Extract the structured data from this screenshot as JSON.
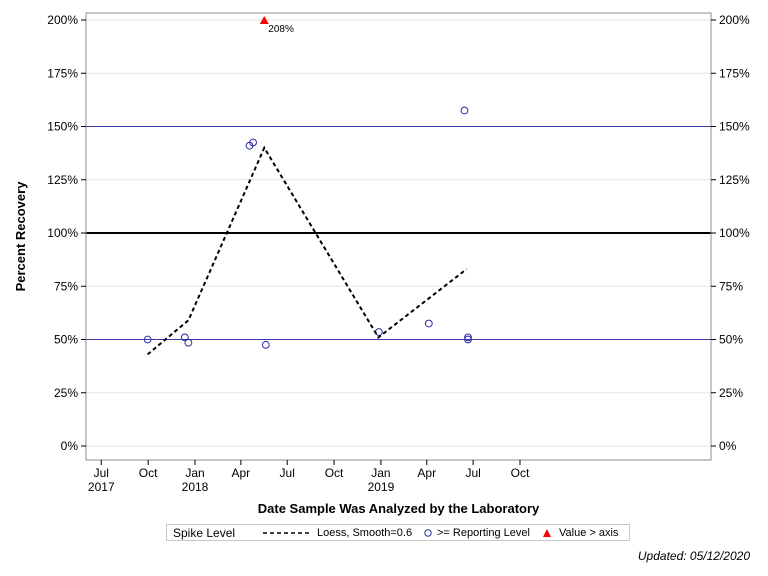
{
  "chart_data": {
    "type": "scatter",
    "xlabel": "Date Sample Was Analyzed by the Laboratory",
    "ylabel": "Percent Recovery",
    "xlim": [
      "2017-06-01",
      "2020-10-10"
    ],
    "ylim": [
      0,
      200
    ],
    "x_ticks": [
      {
        "date": "2017-07-01",
        "label": "Jul",
        "year": "2017"
      },
      {
        "date": "2017-10-01",
        "label": "Oct",
        "year": ""
      },
      {
        "date": "2018-01-01",
        "label": "Jan",
        "year": "2018"
      },
      {
        "date": "2018-04-01",
        "label": "Apr",
        "year": ""
      },
      {
        "date": "2018-07-01",
        "label": "Jul",
        "year": ""
      },
      {
        "date": "2018-10-01",
        "label": "Oct",
        "year": ""
      },
      {
        "date": "2019-01-01",
        "label": "Jan",
        "year": "2019"
      },
      {
        "date": "2019-04-01",
        "label": "Apr",
        "year": ""
      },
      {
        "date": "2019-07-01",
        "label": "Jul",
        "year": ""
      },
      {
        "date": "2019-10-01",
        "label": "Oct",
        "year": ""
      }
    ],
    "y_ticks": [
      {
        "value": 0,
        "label": "0%"
      },
      {
        "value": 25,
        "label": "25%"
      },
      {
        "value": 50,
        "label": "50%"
      },
      {
        "value": 75,
        "label": "75%"
      },
      {
        "value": 100,
        "label": "100%"
      },
      {
        "value": 125,
        "label": "125%"
      },
      {
        "value": 150,
        "label": "150%"
      },
      {
        "value": 175,
        "label": "175%"
      },
      {
        "value": 200,
        "label": "200%"
      }
    ],
    "reference_lines": [
      {
        "value": 50,
        "color": "#3a3ab0",
        "width": 1
      },
      {
        "value": 100,
        "color": "#000000",
        "width": 2
      },
      {
        "value": 150,
        "color": "#3a3ab0",
        "width": 1
      }
    ],
    "series": [
      {
        "name": ">= Reporting Level",
        "kind": "points",
        "color": "#2b2ba6",
        "points": [
          {
            "x": "2017-09-30",
            "y": 50
          },
          {
            "x": "2017-12-12",
            "y": 51
          },
          {
            "x": "2017-12-19",
            "y": 48.5
          },
          {
            "x": "2018-04-18",
            "y": 141
          },
          {
            "x": "2018-04-25",
            "y": 142.5
          },
          {
            "x": "2018-05-20",
            "y": 47.5
          },
          {
            "x": "2018-12-28",
            "y": 53.5
          },
          {
            "x": "2019-04-05",
            "y": 57.5
          },
          {
            "x": "2019-06-14",
            "y": 157.5
          },
          {
            "x": "2019-06-21",
            "y": 51
          },
          {
            "x": "2019-06-21",
            "y": 50
          }
        ]
      },
      {
        "name": "Loess, Smooth=0.6",
        "kind": "dashed-line",
        "color": "#000000",
        "points": [
          {
            "x": "2017-09-30",
            "y": 43
          },
          {
            "x": "2017-12-19",
            "y": 59
          },
          {
            "x": "2018-05-17",
            "y": 140
          },
          {
            "x": "2018-12-27",
            "y": 51
          },
          {
            "x": "2019-06-18",
            "y": 83
          }
        ]
      },
      {
        "name": "Value > axis",
        "kind": "triangles",
        "color": "#ff0000",
        "points": [
          {
            "x": "2018-05-17",
            "y": 208,
            "label": "208%"
          }
        ]
      }
    ],
    "legend": {
      "title": "Spike Level",
      "position": "bottom",
      "entries": [
        {
          "label": "Loess, Smooth=0.6",
          "symbol": "dashed-line"
        },
        {
          "label": ">= Reporting Level",
          "symbol": "circle"
        },
        {
          "label": "Value > axis",
          "symbol": "triangle"
        }
      ]
    },
    "grid": true,
    "footnote": "Updated: 05/12/2020"
  }
}
